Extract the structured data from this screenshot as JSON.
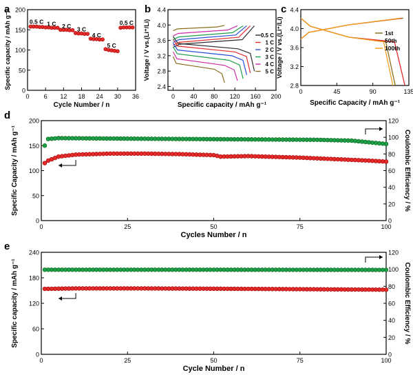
{
  "panels": {
    "a": "a",
    "b": "b",
    "c": "c",
    "d": "d",
    "e": "e"
  },
  "chart_data": [
    {
      "id": "a",
      "type": "scatter",
      "xlabel": "Cycle Number / n",
      "ylabel": "Specific capacity / mAh g⁻¹",
      "xlim": [
        0,
        36
      ],
      "ylim": [
        0,
        200
      ],
      "xticks": [
        0,
        6,
        12,
        18,
        24,
        30,
        36
      ],
      "yticks": [
        0,
        50,
        100,
        150,
        200
      ],
      "marker_color": "#e32b2b",
      "series": [
        {
          "x": [
            1,
            2,
            3,
            4,
            5
          ],
          "values": [
            158,
            158,
            158,
            157,
            157
          ]
        },
        {
          "x": [
            6,
            7,
            8,
            9,
            10
          ],
          "values": [
            156,
            156,
            155,
            155,
            155
          ]
        },
        {
          "x": [
            11,
            12,
            13,
            14,
            15
          ],
          "values": [
            150,
            150,
            150,
            149,
            149
          ]
        },
        {
          "x": [
            16,
            17,
            18,
            19,
            20
          ],
          "values": [
            142,
            141,
            141,
            140,
            140
          ]
        },
        {
          "x": [
            21,
            22,
            23,
            24,
            25
          ],
          "values": [
            128,
            127,
            127,
            126,
            126
          ]
        },
        {
          "x": [
            26,
            27,
            28,
            29,
            30
          ],
          "values": [
            102,
            100,
            99,
            98,
            97
          ]
        },
        {
          "x": [
            31,
            32,
            33,
            34,
            35
          ],
          "values": [
            155,
            156,
            156,
            156,
            156
          ]
        }
      ],
      "annotations": [
        {
          "text": "0.5 C",
          "x": 3,
          "y": 165
        },
        {
          "text": "1 C",
          "x": 8,
          "y": 160
        },
        {
          "text": "2 C",
          "x": 13,
          "y": 154
        },
        {
          "text": "3 C",
          "x": 18,
          "y": 146
        },
        {
          "text": "4 C",
          "x": 23,
          "y": 132
        },
        {
          "text": "5 C",
          "x": 28,
          "y": 106
        },
        {
          "text": "0.5 C",
          "x": 33,
          "y": 162
        }
      ]
    },
    {
      "id": "b",
      "type": "line",
      "xlabel": "Specific  capacity / mAh g⁻¹",
      "ylabel": "Voltage / V vs.(Li⁺/Li)",
      "xlim": [
        -10,
        200
      ],
      "ylim": [
        2.3,
        4.4
      ],
      "xticks": [
        0,
        40,
        80,
        120,
        160,
        200
      ],
      "yticks": [
        2.4,
        2.8,
        3.2,
        3.6,
        4.0,
        4.4
      ],
      "series": [
        {
          "name": "0.5 C",
          "color": "#2b2b2b",
          "capacity": 158,
          "charge_v": [
            3.42,
            3.5,
            3.62,
            3.98
          ],
          "discharge_v": [
            3.52,
            3.43,
            3.38,
            2.8
          ]
        },
        {
          "name": "1 C",
          "color": "#e32b2b",
          "capacity": 150,
          "charge_v": [
            3.47,
            3.55,
            3.68,
            3.98
          ],
          "discharge_v": [
            3.45,
            3.36,
            3.3,
            2.75
          ]
        },
        {
          "name": "2 C",
          "color": "#2b4fd8",
          "capacity": 143,
          "charge_v": [
            3.55,
            3.62,
            3.74,
            3.98
          ],
          "discharge_v": [
            3.35,
            3.27,
            3.2,
            2.7
          ]
        },
        {
          "name": "3 C",
          "color": "#1f9e4a",
          "capacity": 136,
          "charge_v": [
            3.62,
            3.69,
            3.8,
            3.98
          ],
          "discharge_v": [
            3.25,
            3.16,
            3.08,
            2.6
          ]
        },
        {
          "name": "4 C",
          "color": "#cc2aa8",
          "capacity": 125,
          "charge_v": [
            3.72,
            3.78,
            3.87,
            3.98
          ],
          "discharge_v": [
            3.12,
            3.03,
            2.95,
            2.55
          ]
        },
        {
          "name": "5 C",
          "color": "#8a6d1c",
          "capacity": 100,
          "charge_v": [
            3.85,
            3.9,
            3.95,
            3.99
          ],
          "discharge_v": [
            3.0,
            2.92,
            2.85,
            2.5
          ]
        }
      ]
    },
    {
      "id": "c",
      "type": "line",
      "xlabel": "Specific Capacity / mAh g⁻¹",
      "ylabel": "Voltage / V vs.(Li⁺/Li)",
      "xlim": [
        0,
        135
      ],
      "ylim": [
        2.8,
        4.4
      ],
      "xticks": [
        0,
        45,
        90,
        135
      ],
      "yticks": [
        2.8,
        3.2,
        3.6,
        4.0,
        4.4
      ],
      "series": [
        {
          "name": "1st",
          "color": "#8a6d1c",
          "charge_end": 128,
          "discharge_end": 118
        },
        {
          "name": "50th",
          "color": "#e32b2b",
          "charge_end": 126,
          "discharge_end": 130
        },
        {
          "name": "100th",
          "color": "#f0a01c",
          "charge_end": 124,
          "discharge_end": 115
        }
      ]
    },
    {
      "id": "d",
      "type": "scatter",
      "xlabel": "Cycles Number / n",
      "ylabel": "Specific Capacity / mAh g⁻¹",
      "y2label": "Coulombic Efficiency / %",
      "xlim": [
        0,
        100
      ],
      "ylim": [
        0,
        200
      ],
      "y2lim": [
        0,
        120
      ],
      "xticks": [
        0,
        25,
        50,
        75,
        100
      ],
      "yticks": [
        0,
        50,
        100,
        150,
        200
      ],
      "y2ticks": [
        0,
        20,
        40,
        60,
        80,
        100,
        120
      ],
      "series": [
        {
          "name": "capacity",
          "axis": "left",
          "color": "#e32b2b",
          "x_start": 1,
          "x_end": 100,
          "points": [
            [
              1,
              115
            ],
            [
              2,
              120
            ],
            [
              5,
              128
            ],
            [
              10,
              132
            ],
            [
              20,
              134
            ],
            [
              30,
              134
            ],
            [
              40,
              133
            ],
            [
              50,
              131
            ],
            [
              52,
              128
            ],
            [
              60,
              129
            ],
            [
              75,
              126
            ],
            [
              85,
              123
            ],
            [
              95,
              120
            ],
            [
              100,
              118
            ]
          ]
        },
        {
          "name": "efficiency",
          "axis": "right",
          "color": "#1f9e4a",
          "x_start": 1,
          "x_end": 100,
          "points": [
            [
              1,
              90
            ],
            [
              2,
              98
            ],
            [
              5,
              99
            ],
            [
              20,
              98.5
            ],
            [
              40,
              98
            ],
            [
              60,
              97.5
            ],
            [
              80,
              97
            ],
            [
              90,
              96
            ],
            [
              100,
              92
            ]
          ]
        }
      ]
    },
    {
      "id": "e",
      "type": "scatter",
      "xlabel": "Cycle Number / n",
      "ylabel": "Specific  capacity / mAh g⁻¹",
      "y2label": "Coulombic Efficiency / %",
      "xlim": [
        0,
        100
      ],
      "ylim": [
        0,
        240
      ],
      "y2lim": [
        0,
        120
      ],
      "xticks": [
        0,
        25,
        50,
        75,
        100
      ],
      "yticks": [
        0,
        60,
        120,
        180,
        240
      ],
      "y2ticks": [
        0,
        20,
        40,
        60,
        80,
        100,
        120
      ],
      "series": [
        {
          "name": "capacity",
          "axis": "left",
          "color": "#e32b2b",
          "x_start": 1,
          "x_end": 100,
          "points": [
            [
              1,
              154
            ],
            [
              10,
              155
            ],
            [
              30,
              155
            ],
            [
              60,
              154
            ],
            [
              100,
              152
            ]
          ]
        },
        {
          "name": "efficiency",
          "axis": "right",
          "color": "#1f9e4a",
          "x_start": 1,
          "x_end": 100,
          "points": [
            [
              1,
              99.5
            ],
            [
              50,
              99.5
            ],
            [
              100,
              99.3
            ]
          ]
        }
      ]
    }
  ]
}
